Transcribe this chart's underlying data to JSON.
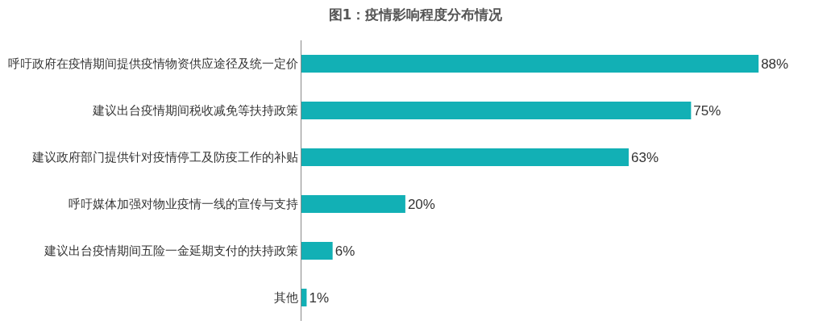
{
  "chart_data": {
    "type": "bar",
    "orientation": "horizontal",
    "title": "图1：疫情影响程度分布情况",
    "categories": [
      "呼吁政府在疫情期间提供疫情物资供应途径及统一定价",
      "建议出台疫情期间税收减免等扶持政策",
      "建议政府部门提供针对疫情停工及防疫工作的补贴",
      "呼吁媒体加强对物业疫情一线的宣传与支持",
      "建议出台疫情期间五险一金延期支付的扶持政策",
      "其他"
    ],
    "values": [
      88,
      75,
      63,
      20,
      6,
      1
    ],
    "value_labels": [
      "88%",
      "75%",
      "63%",
      "20%",
      "6%",
      "1%"
    ],
    "color": "#12b0b5",
    "tick_labels": "y",
    "legend": false
  }
}
